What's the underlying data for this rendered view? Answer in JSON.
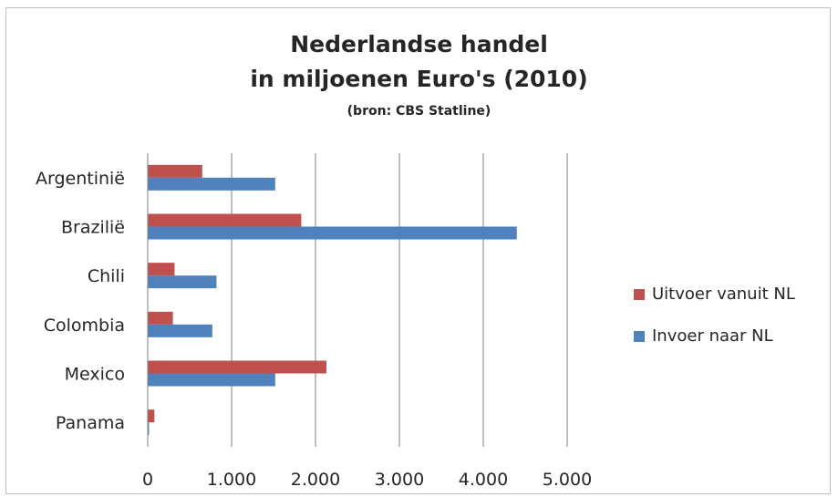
{
  "chart_data": {
    "type": "bar",
    "orientation": "horizontal",
    "title": "Nederlandse handel",
    "title_line2": "in miljoenen Euro's (2010)",
    "subtitle": "(bron: CBS Statline)",
    "categories": [
      "Argentinië",
      "Brazilië",
      "Chili",
      "Colombia",
      "Mexico",
      "Panama"
    ],
    "series": [
      {
        "name": "Uitvoer vanuit NL",
        "color": "#c0504d",
        "values": [
          650,
          1830,
          320,
          300,
          2130,
          80
        ]
      },
      {
        "name": "Invoer naar NL",
        "color": "#4f81bd",
        "values": [
          1520,
          4400,
          820,
          770,
          1520,
          15
        ]
      }
    ],
    "xlim": [
      0,
      5000
    ],
    "xticks": [
      "0",
      "1.000",
      "2.000",
      "3.000",
      "4.000",
      "5.000"
    ],
    "grid": true,
    "legend_position": "right"
  }
}
